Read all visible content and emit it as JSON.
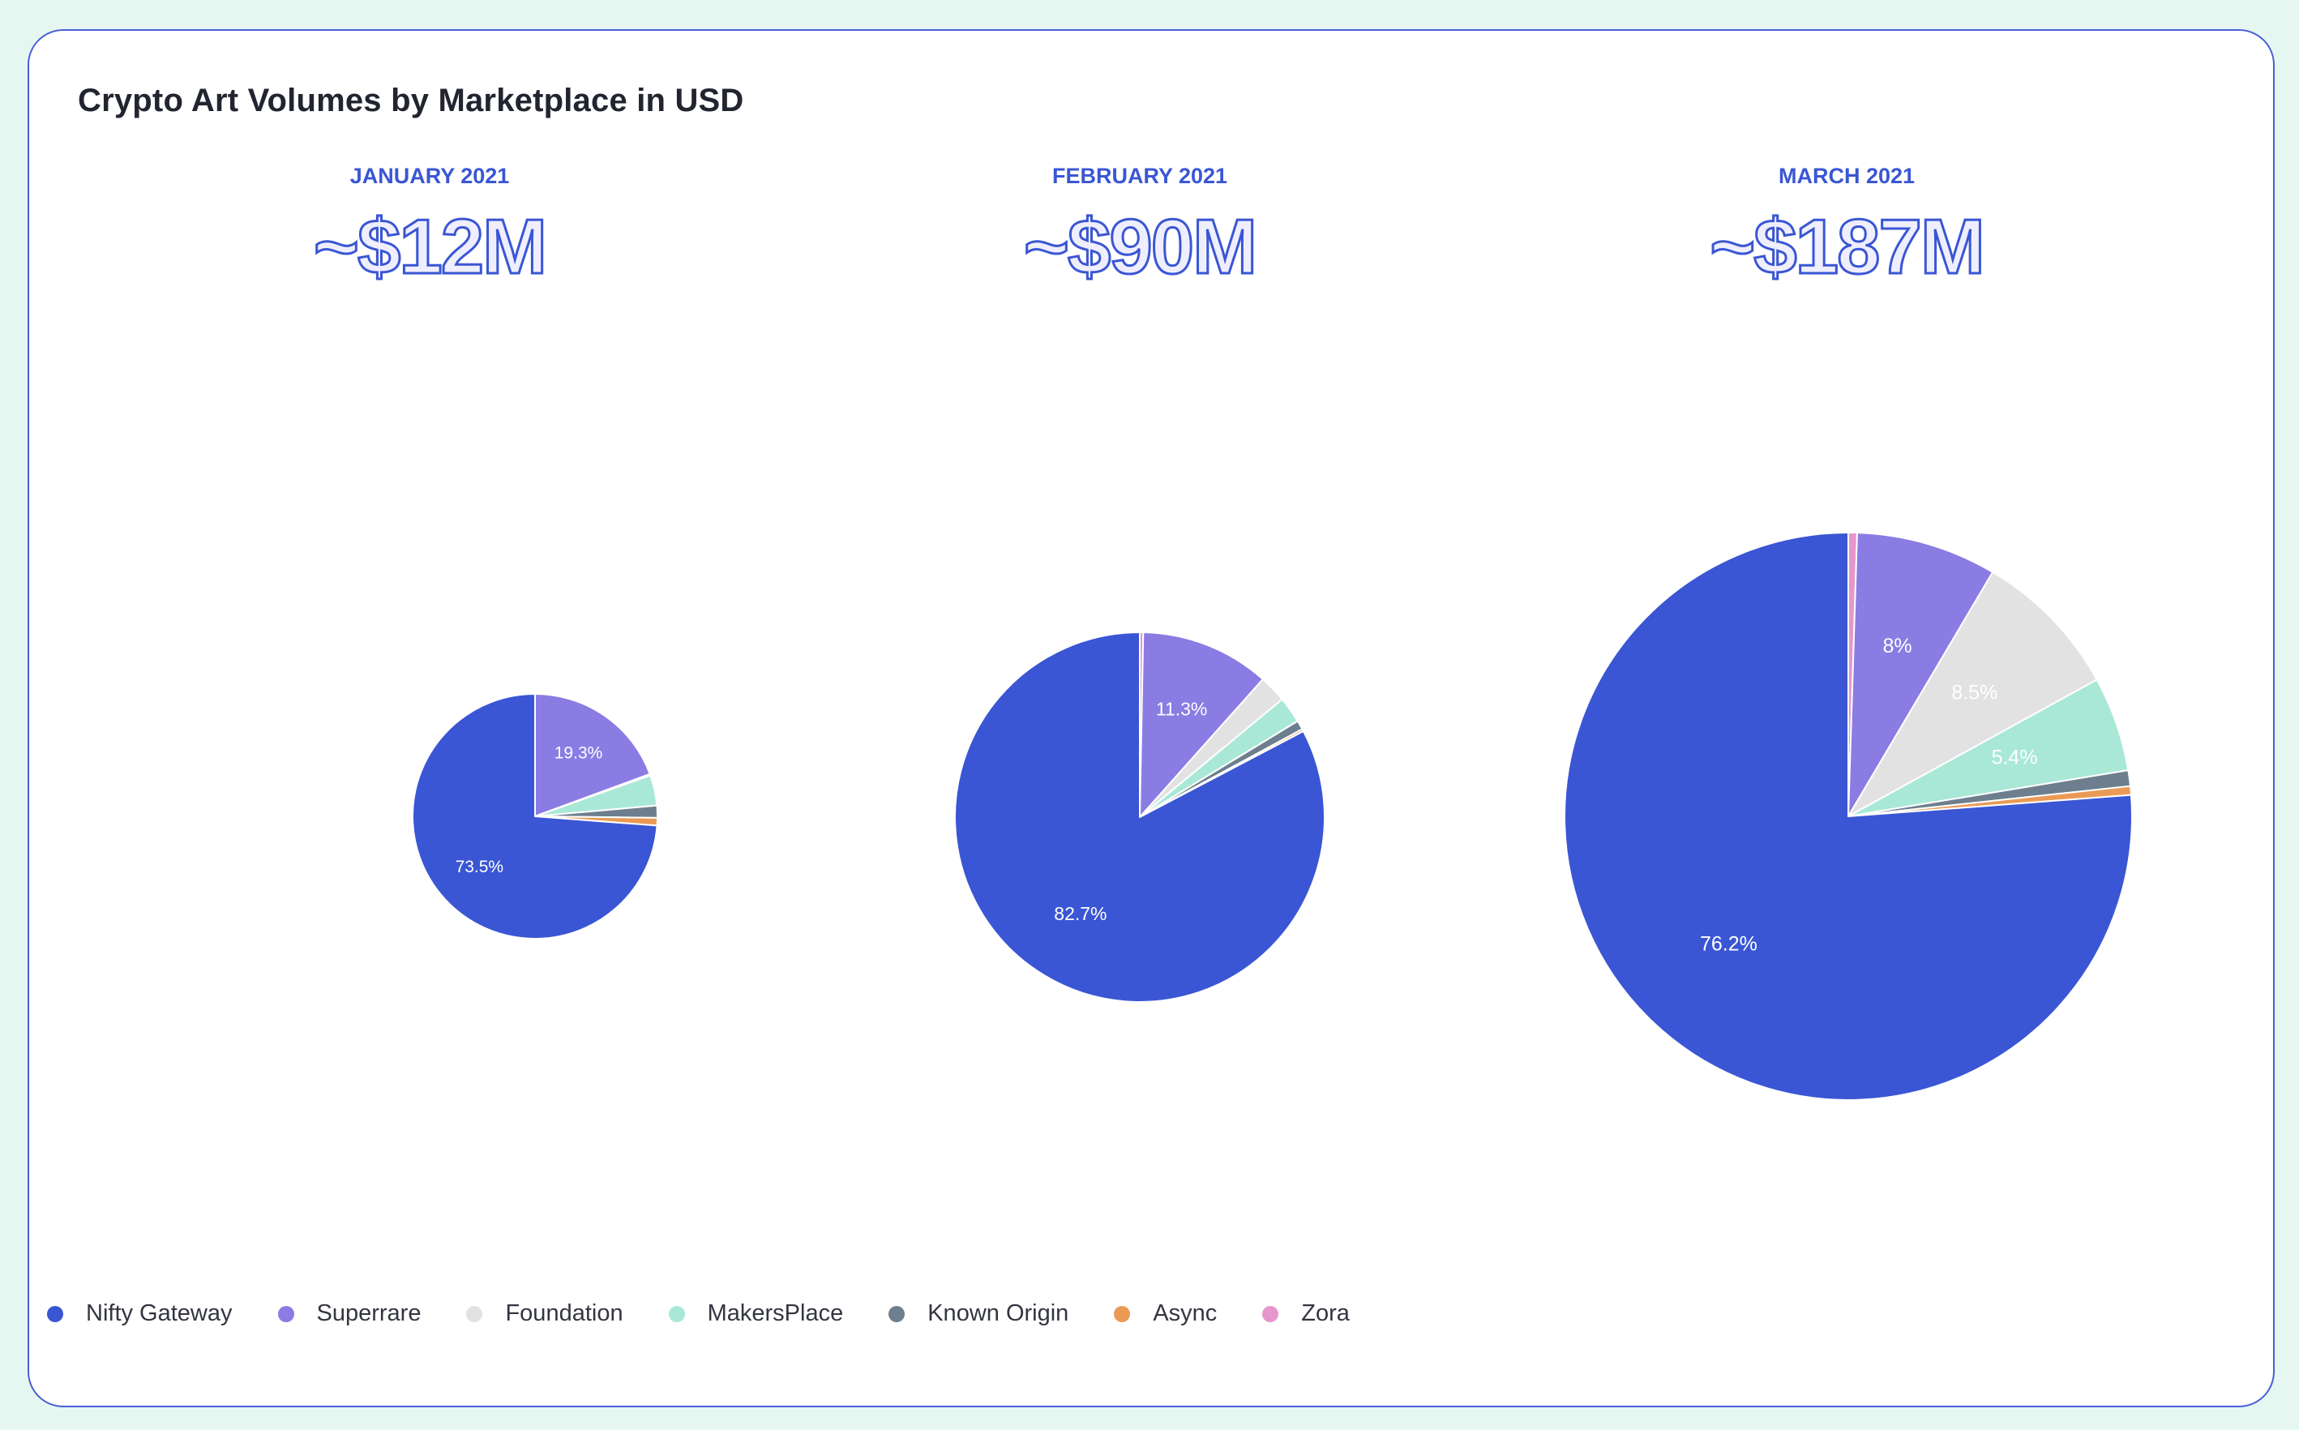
{
  "title": "Crypto Art Volumes by Marketplace in USD",
  "colors": {
    "Nifty Gateway": "#3a56d4",
    "Superrare": "#8a7ce3",
    "Foundation": "#e2e2e2",
    "MakersPlace": "#a9e8d6",
    "Known Origin": "#6d7f8e",
    "Async": "#ea9a55",
    "Zora": "#e597cc"
  },
  "legend": [
    "Nifty Gateway",
    "Superrare",
    "Foundation",
    "MakersPlace",
    "Known Origin",
    "Async",
    "Zora"
  ],
  "months": [
    {
      "label": "JANUARY 2021",
      "total": "~$12M"
    },
    {
      "label": "FEBRUARY 2021",
      "total": "~$90M"
    },
    {
      "label": "MARCH 2021",
      "total": "~$187M"
    }
  ],
  "chart_data": [
    {
      "type": "pie",
      "title": "JANUARY 2021",
      "subtitle": "~$12M",
      "total_usd_millions": 12,
      "categories": [
        "Superrare",
        "Foundation",
        "MakersPlace",
        "Known Origin",
        "Async",
        "Nifty Gateway"
      ],
      "values": [
        19.3,
        0.2,
        4.0,
        1.6,
        1.0,
        73.5
      ],
      "data_labels": [
        "19.3%",
        "",
        "",
        "",
        "",
        "73.5%"
      ]
    },
    {
      "type": "pie",
      "title": "FEBRUARY 2021",
      "subtitle": "~$90M",
      "total_usd_millions": 90,
      "categories": [
        "Zora",
        "Superrare",
        "Foundation",
        "MakersPlace",
        "Known Origin",
        "Async",
        "Nifty Gateway"
      ],
      "values": [
        0.3,
        11.3,
        2.4,
        2.3,
        0.8,
        0.2,
        82.7
      ],
      "data_labels": [
        "",
        "11.3%",
        "",
        "",
        "",
        "",
        "82.7%"
      ]
    },
    {
      "type": "pie",
      "title": "MARCH 2021",
      "subtitle": "~$187M",
      "total_usd_millions": 187,
      "categories": [
        "Zora",
        "Superrare",
        "Foundation",
        "MakersPlace",
        "Known Origin",
        "Async",
        "Nifty Gateway"
      ],
      "values": [
        0.5,
        8.0,
        8.5,
        5.4,
        0.9,
        0.5,
        76.2
      ],
      "data_labels": [
        "",
        "8%",
        "8.5%",
        "5.4%",
        "",
        "",
        "76.2%"
      ]
    }
  ]
}
